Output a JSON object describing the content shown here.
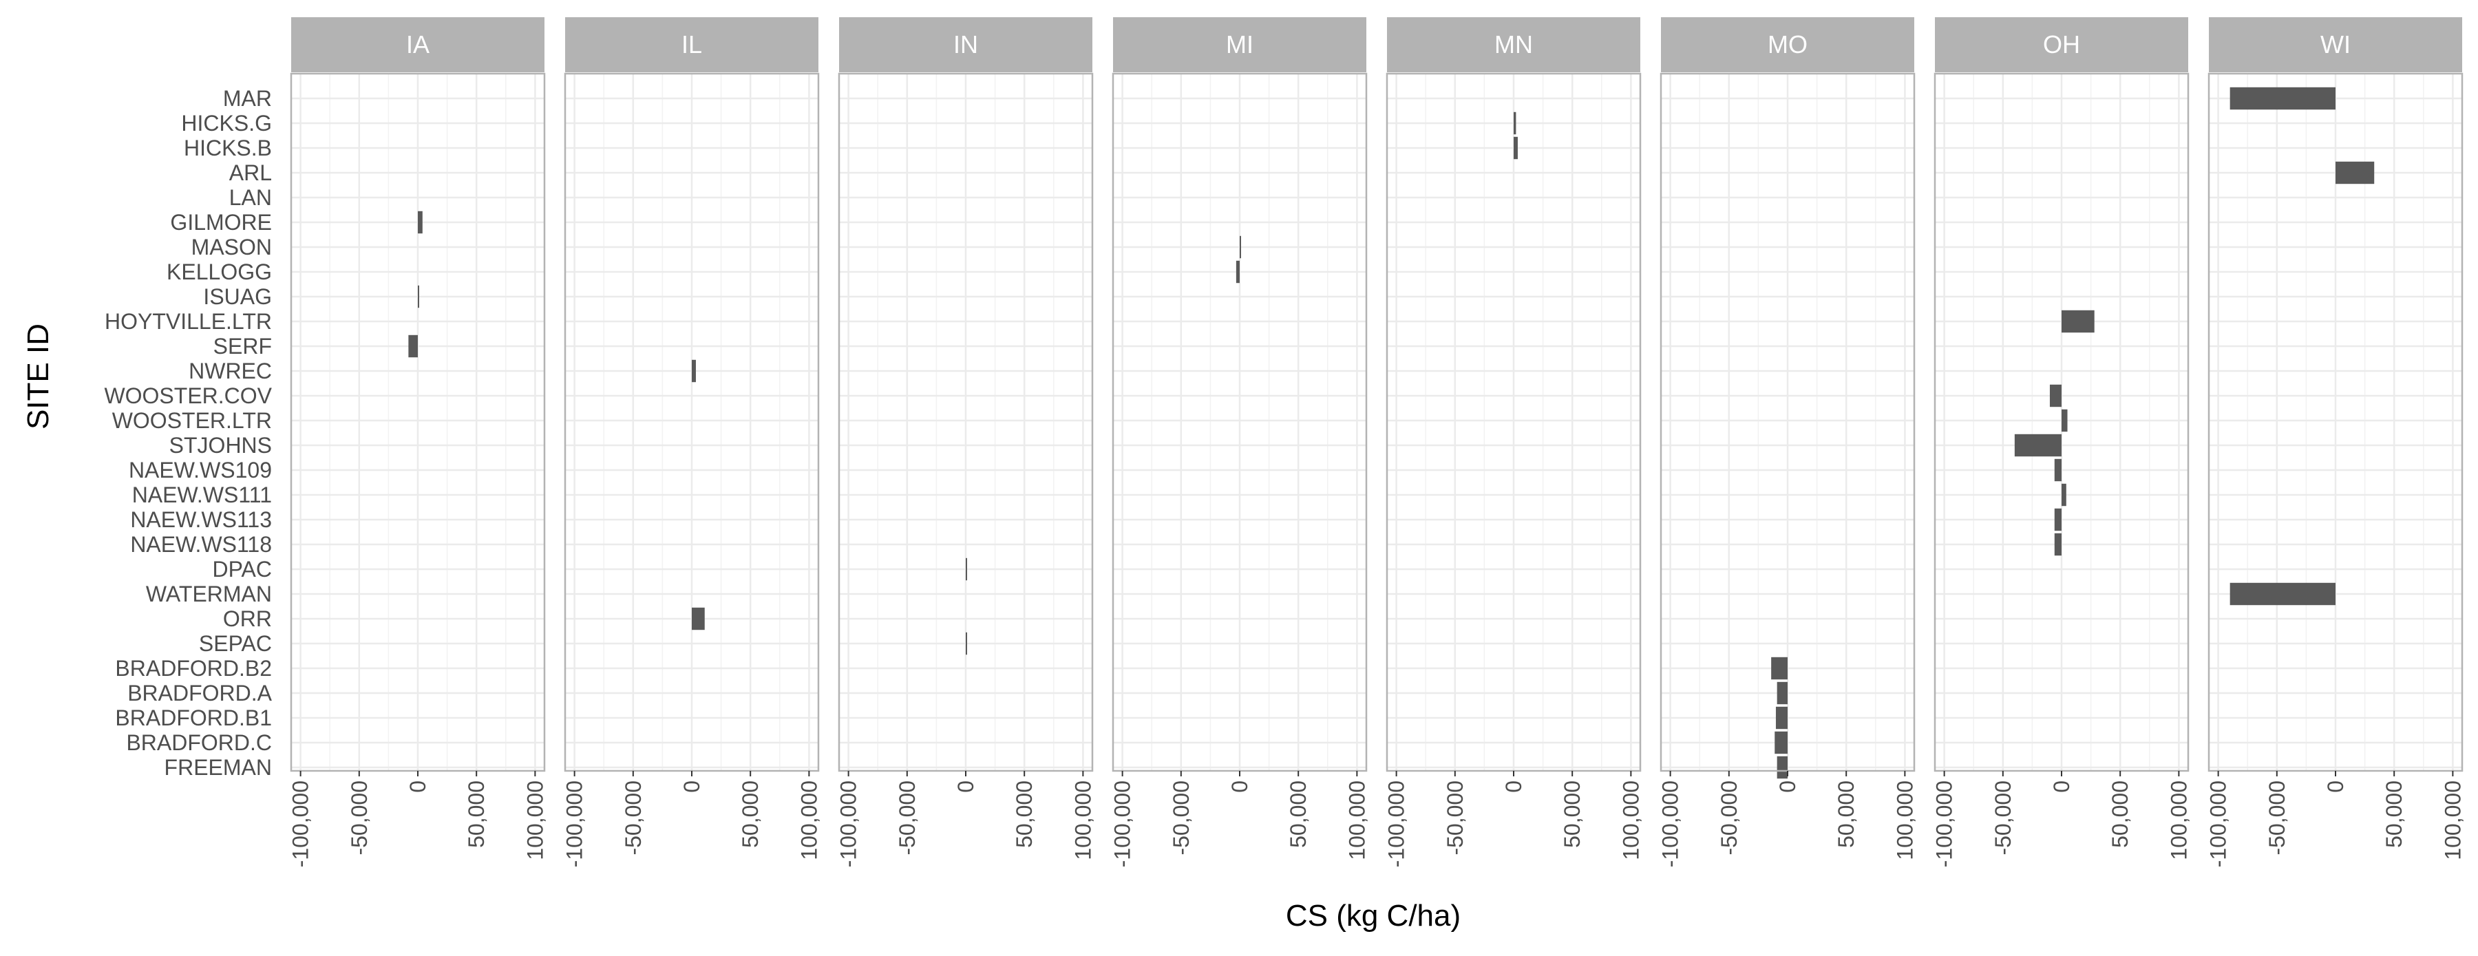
{
  "chart_data": {
    "type": "bar",
    "orientation": "horizontal",
    "xlabel": "CS (kg C/ha)",
    "ylabel": "SITE ID",
    "xlim": [
      -108000,
      108000
    ],
    "x_ticks": [
      -100000,
      -50000,
      0,
      50000,
      100000
    ],
    "x_tick_labels": [
      "-100,000",
      "-50,000",
      "0",
      "50,000",
      "100,000"
    ],
    "grid": true,
    "legend": "none",
    "bar_color": "#595959",
    "strip_color": "#b3b3b3",
    "panel_border_color": "#b3b3b3",
    "grid_color": "#ebebeb",
    "categories": [
      "MAR",
      "HICKS.G",
      "HICKS.B",
      "ARL",
      "LAN",
      "GILMORE",
      "MASON",
      "KELLOGG",
      "ISUAG",
      "HOYTVILLE.LTR",
      "SERF",
      "NWREC",
      "WOOSTER.COV",
      "WOOSTER.LTR",
      "STJOHNS",
      "NAEW.WS109",
      "NAEW.WS111",
      "NAEW.WS113",
      "NAEW.WS118",
      "DPAC",
      "WATERMAN",
      "ORR",
      "SEPAC",
      "BRADFORD.B2",
      "BRADFORD.A",
      "BRADFORD.B1",
      "BRADFORD.C",
      "FREEMAN"
    ],
    "facets": [
      {
        "label": "IA",
        "values": [
          null,
          null,
          null,
          null,
          null,
          4000,
          null,
          null,
          1000,
          null,
          -8000,
          null,
          null,
          null,
          null,
          null,
          null,
          null,
          null,
          null,
          null,
          null,
          null,
          null,
          null,
          null,
          null,
          null
        ]
      },
      {
        "label": "IL",
        "values": [
          null,
          null,
          null,
          null,
          null,
          null,
          null,
          null,
          null,
          null,
          null,
          3500,
          null,
          null,
          null,
          null,
          null,
          null,
          null,
          null,
          null,
          11000,
          null,
          null,
          null,
          null,
          null,
          null
        ]
      },
      {
        "label": "IN",
        "values": [
          null,
          null,
          null,
          null,
          null,
          null,
          null,
          null,
          null,
          null,
          null,
          null,
          null,
          null,
          null,
          null,
          null,
          null,
          null,
          800,
          null,
          null,
          600,
          null,
          null,
          null,
          null,
          null
        ]
      },
      {
        "label": "MI",
        "values": [
          null,
          null,
          null,
          null,
          null,
          null,
          600,
          -3000,
          null,
          null,
          null,
          null,
          null,
          null,
          null,
          null,
          null,
          null,
          null,
          null,
          null,
          null,
          null,
          null,
          null,
          null,
          null,
          null
        ]
      },
      {
        "label": "MN",
        "values": [
          null,
          2000,
          3500,
          null,
          null,
          null,
          null,
          null,
          null,
          null,
          null,
          null,
          null,
          null,
          null,
          null,
          null,
          null,
          null,
          null,
          null,
          null,
          null,
          null,
          null,
          null,
          null,
          null
        ]
      },
      {
        "label": "MO",
        "values": [
          null,
          null,
          null,
          null,
          null,
          null,
          null,
          null,
          null,
          null,
          null,
          null,
          null,
          null,
          null,
          null,
          null,
          null,
          null,
          null,
          null,
          null,
          null,
          -14000,
          -9000,
          -10000,
          -11000,
          -9000
        ]
      },
      {
        "label": "OH",
        "values": [
          null,
          null,
          null,
          null,
          null,
          null,
          null,
          null,
          null,
          28000,
          null,
          null,
          -10000,
          5000,
          -40000,
          -6000,
          4000,
          -6000,
          -6000,
          null,
          null,
          null,
          null,
          null,
          null,
          null,
          null,
          null
        ]
      },
      {
        "label": "WI",
        "values": [
          -90000,
          null,
          null,
          33000,
          null,
          null,
          null,
          null,
          null,
          null,
          null,
          null,
          null,
          null,
          null,
          null,
          null,
          null,
          null,
          null,
          -90000,
          null,
          null,
          null,
          null,
          null,
          null,
          null
        ]
      }
    ]
  }
}
